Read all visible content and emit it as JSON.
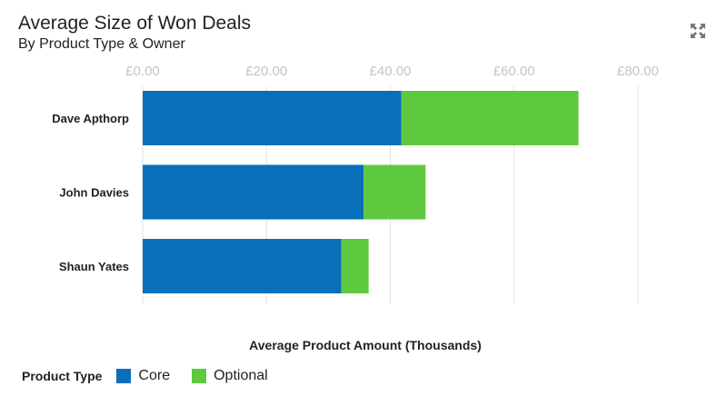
{
  "chart_data": {
    "type": "bar",
    "orientation": "horizontal",
    "stacked": true,
    "title": "Average Size of Won Deals",
    "subtitle": "By Product Type & Owner",
    "xlabel": "Average Product Amount (Thousands)",
    "ylabel": "",
    "categories": [
      "Dave Apthorp",
      "John Davies",
      "Shaun Yates"
    ],
    "series": [
      {
        "name": "Core",
        "color": "#0a6fba",
        "values": [
          41.8,
          35.7,
          32.1
        ]
      },
      {
        "name": "Optional",
        "color": "#5ec93f",
        "values": [
          28.6,
          10.0,
          4.4
        ]
      }
    ],
    "xlim": [
      0,
      80
    ],
    "xticks": [
      0,
      20,
      40,
      60,
      80
    ],
    "xtick_labels": [
      "£0.00",
      "£20.00",
      "£40.00",
      "£60.00",
      "£80.00"
    ],
    "grid": true,
    "legend_title": "Product Type",
    "legend_position": "bottom-left"
  },
  "icons": {
    "expand": "expand-icon"
  }
}
